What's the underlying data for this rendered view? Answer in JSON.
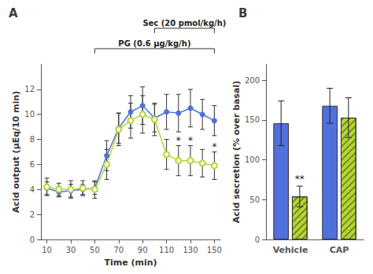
{
  "chart_data": [
    {
      "type": "line",
      "title": "A",
      "xlabel": "Time (min)",
      "ylabel": "Acid output (μEq/10 min)",
      "x": [
        10,
        20,
        30,
        40,
        50,
        60,
        70,
        80,
        90,
        100,
        110,
        120,
        130,
        140,
        150
      ],
      "series": [
        {
          "marker": "circle",
          "values": [
            4.1,
            3.8,
            3.9,
            4.0,
            4.1,
            6.7,
            8.9,
            10.2,
            10.7,
            9.7,
            10.2,
            10.1,
            10.5,
            10.0,
            9.5
          ],
          "errors": [
            0.5,
            0.4,
            0.5,
            0.4,
            0.5,
            1.2,
            1.2,
            1.3,
            1.5,
            1.1,
            1.4,
            1.5,
            1.5,
            1.2,
            1.2
          ]
        },
        {
          "marker": "emptyCircle",
          "values": [
            4.2,
            4.0,
            4.0,
            4.1,
            4.0,
            6.0,
            8.8,
            9.5,
            10.0,
            9.6,
            6.8,
            6.3,
            6.3,
            6.1,
            5.9
          ],
          "errors": [
            0.7,
            0.5,
            0.7,
            0.6,
            0.7,
            1.2,
            1.3,
            1.4,
            1.5,
            1.3,
            1.2,
            1.2,
            1.2,
            1.1,
            1.1
          ],
          "annotations": [
            {
              "x": 120,
              "text": "*"
            },
            {
              "x": 130,
              "text": "*"
            },
            {
              "x": 150,
              "text": "*"
            }
          ]
        }
      ],
      "brackets": [
        {
          "text": "PG (0.6 μg/kg/h)",
          "x": [
            50,
            150
          ]
        },
        {
          "text": "Sec (20 pmol/kg/h)",
          "x": [
            100,
            150
          ]
        }
      ],
      "xlim": [
        5,
        155
      ],
      "xticks": [
        10,
        30,
        50,
        70,
        90,
        110,
        130,
        150
      ],
      "ylim": [
        0,
        14
      ],
      "yticks": [
        0,
        2,
        4,
        6,
        8,
        10,
        12
      ],
      "grid": false
    },
    {
      "type": "bar",
      "title": "B",
      "ylabel": "Acid secretion (% over basal)",
      "categories": [
        "Vehicle",
        "CAP"
      ],
      "series": [
        {
          "values": [
            146,
            168
          ],
          "errors": [
            28,
            22
          ]
        },
        {
          "values": [
            54,
            153
          ],
          "errors": [
            13,
            25
          ],
          "annotations": [
            {
              "category": "Vehicle",
              "text": "**"
            }
          ]
        }
      ],
      "ylim": [
        0,
        220
      ],
      "yticks": [
        0,
        50,
        100,
        150,
        200
      ],
      "grid": false
    }
  ]
}
